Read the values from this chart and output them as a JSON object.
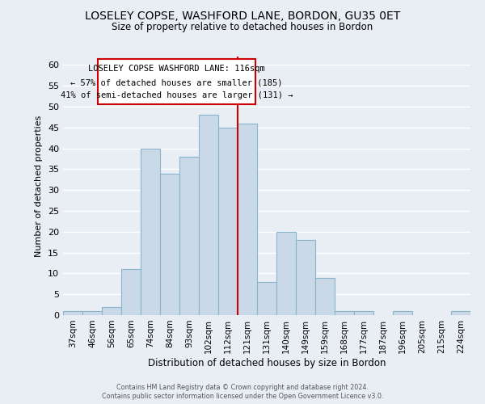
{
  "title": "LOSELEY COPSE, WASHFORD LANE, BORDON, GU35 0ET",
  "subtitle": "Size of property relative to detached houses in Bordon",
  "xlabel": "Distribution of detached houses by size in Bordon",
  "ylabel": "Number of detached properties",
  "bar_labels": [
    "37sqm",
    "46sqm",
    "56sqm",
    "65sqm",
    "74sqm",
    "84sqm",
    "93sqm",
    "102sqm",
    "112sqm",
    "121sqm",
    "131sqm",
    "140sqm",
    "149sqm",
    "159sqm",
    "168sqm",
    "177sqm",
    "187sqm",
    "196sqm",
    "205sqm",
    "215sqm",
    "224sqm"
  ],
  "bar_values": [
    1,
    1,
    2,
    11,
    40,
    34,
    38,
    48,
    45,
    46,
    8,
    20,
    18,
    9,
    1,
    1,
    0,
    1,
    0,
    0,
    1
  ],
  "bar_color": "#c9d9e8",
  "bar_edge_color": "#8ab4cc",
  "vline_x": 8.5,
  "vline_color": "#cc0000",
  "ylim": [
    0,
    62
  ],
  "yticks": [
    0,
    5,
    10,
    15,
    20,
    25,
    30,
    35,
    40,
    45,
    50,
    55,
    60
  ],
  "annotation_title": "LOSELEY COPSE WASHFORD LANE: 116sqm",
  "annotation_line1": "← 57% of detached houses are smaller (185)",
  "annotation_line2": "41% of semi-detached houses are larger (131) →",
  "annotation_box_color": "#ffffff",
  "annotation_box_edge_color": "#cc0000",
  "footer1": "Contains HM Land Registry data © Crown copyright and database right 2024.",
  "footer2": "Contains public sector information licensed under the Open Government Licence v3.0.",
  "background_color": "#e8eef4",
  "grid_color": "#ffffff",
  "title_fontsize": 10,
  "subtitle_fontsize": 8.5,
  "ylabel_fontsize": 8,
  "xlabel_fontsize": 8.5,
  "tick_fontsize": 7.5,
  "ytick_fontsize": 8,
  "footer_fontsize": 5.8,
  "ann_title_fontsize": 7.5,
  "ann_text_fontsize": 7.5
}
